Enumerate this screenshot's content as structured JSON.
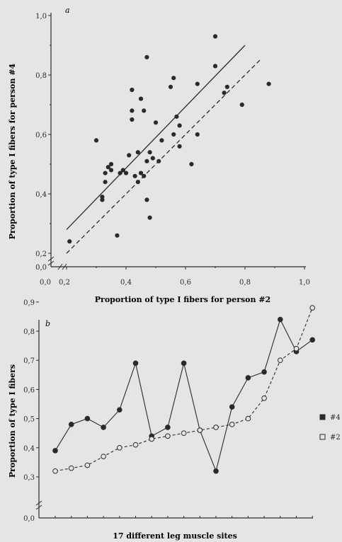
{
  "colors": {
    "background": "#e4e6e5",
    "ink": "#2a2a2a",
    "hollow_fill": "#e4e6e5"
  },
  "chart_data": [
    {
      "panel_label": "a",
      "type": "scatter",
      "xlabel": "Proportion of type I fibers for person #2",
      "ylabel": "Proportion of type I fibers for person #4",
      "x_ticks": [
        "0,0",
        "0,2",
        "0,4",
        "0,6",
        "0,8",
        "1,0"
      ],
      "y_ticks": [
        "0,0",
        "0,2",
        "0,4",
        "0,6",
        "0,8",
        "1,0"
      ],
      "x_tick_values": [
        0.0,
        0.2,
        0.4,
        0.6,
        0.8,
        1.0
      ],
      "y_tick_values": [
        0.0,
        0.2,
        0.4,
        0.6,
        0.8,
        1.0
      ],
      "xlim": [
        0.0,
        1.0
      ],
      "ylim": [
        0.0,
        1.0
      ],
      "axis_breaks": true,
      "grid": false,
      "points": [
        [
          0.21,
          0.24
        ],
        [
          0.3,
          0.58
        ],
        [
          0.32,
          0.38
        ],
        [
          0.32,
          0.39
        ],
        [
          0.33,
          0.44
        ],
        [
          0.33,
          0.47
        ],
        [
          0.34,
          0.49
        ],
        [
          0.35,
          0.48
        ],
        [
          0.35,
          0.5
        ],
        [
          0.37,
          0.26
        ],
        [
          0.38,
          0.47
        ],
        [
          0.39,
          0.48
        ],
        [
          0.4,
          0.47
        ],
        [
          0.41,
          0.53
        ],
        [
          0.42,
          0.68
        ],
        [
          0.42,
          0.65
        ],
        [
          0.42,
          0.75
        ],
        [
          0.43,
          0.46
        ],
        [
          0.44,
          0.44
        ],
        [
          0.44,
          0.54
        ],
        [
          0.45,
          0.72
        ],
        [
          0.45,
          0.47
        ],
        [
          0.46,
          0.68
        ],
        [
          0.46,
          0.46
        ],
        [
          0.47,
          0.38
        ],
        [
          0.47,
          0.86
        ],
        [
          0.47,
          0.51
        ],
        [
          0.48,
          0.32
        ],
        [
          0.48,
          0.54
        ],
        [
          0.49,
          0.52
        ],
        [
          0.5,
          0.64
        ],
        [
          0.51,
          0.51
        ],
        [
          0.52,
          0.58
        ],
        [
          0.55,
          0.76
        ],
        [
          0.56,
          0.79
        ],
        [
          0.56,
          0.6
        ],
        [
          0.57,
          0.66
        ],
        [
          0.58,
          0.56
        ],
        [
          0.58,
          0.63
        ],
        [
          0.62,
          0.5
        ],
        [
          0.64,
          0.77
        ],
        [
          0.64,
          0.6
        ],
        [
          0.7,
          0.93
        ],
        [
          0.7,
          0.83
        ],
        [
          0.73,
          0.74
        ],
        [
          0.74,
          0.76
        ],
        [
          0.79,
          0.7
        ],
        [
          0.88,
          0.77
        ]
      ],
      "lines": [
        {
          "style": "solid",
          "from": [
            0.2,
            0.28
          ],
          "to": [
            0.8,
            0.9
          ]
        },
        {
          "style": "dashed",
          "from": [
            0.2,
            0.2
          ],
          "to": [
            0.85,
            0.85
          ]
        }
      ]
    },
    {
      "panel_label": "b",
      "type": "line",
      "xlabel": "17 different leg muscle sites",
      "ylabel": "Proportion of type I fibers",
      "y_ticks": [
        "0,0",
        "0,3",
        "0,4",
        "0,5",
        "0,6",
        "0,7",
        "0,8",
        "0,9"
      ],
      "y_tick_values": [
        0.0,
        0.3,
        0.4,
        0.5,
        0.6,
        0.7,
        0.8,
        0.9
      ],
      "ylim": [
        0.0,
        0.9
      ],
      "axis_breaks": true,
      "grid": false,
      "x": [
        1,
        2,
        3,
        4,
        5,
        6,
        7,
        8,
        9,
        10,
        11,
        12,
        13,
        14,
        15,
        16,
        17
      ],
      "legend_placement": "right",
      "series": [
        {
          "name": "#4",
          "marker": "filled-circle",
          "line_style": "solid",
          "values": [
            0.39,
            0.48,
            0.5,
            0.47,
            0.53,
            0.69,
            0.44,
            0.47,
            0.69,
            0.46,
            0.32,
            0.54,
            0.64,
            0.66,
            0.84,
            0.73,
            0.77
          ]
        },
        {
          "name": "#2",
          "marker": "hollow-circle",
          "line_style": "dashed",
          "values": [
            0.32,
            0.33,
            0.34,
            0.37,
            0.4,
            0.41,
            0.43,
            0.44,
            0.45,
            0.46,
            0.47,
            0.48,
            0.5,
            0.57,
            0.7,
            0.74,
            0.88
          ]
        }
      ]
    }
  ]
}
